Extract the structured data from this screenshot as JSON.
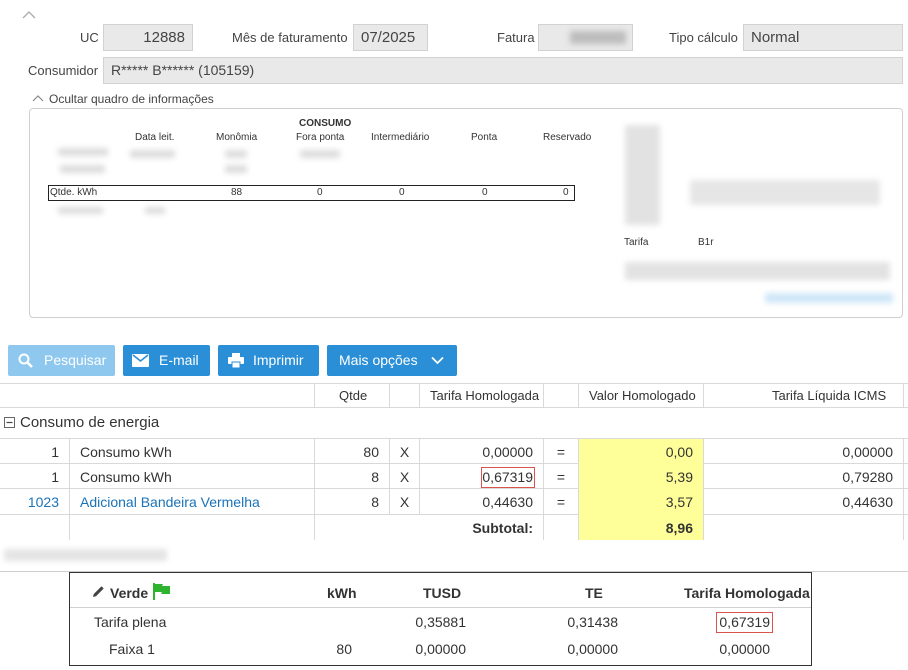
{
  "header": {
    "uc_label": "UC",
    "uc_value": "12888",
    "mes_label": "Mês de faturamento",
    "mes_value": "07/2025",
    "fatura_label": "Fatura",
    "tipo_label": "Tipo cálculo",
    "tipo_value": "Normal",
    "consumidor_label": "Consumidor",
    "consumidor_value": "R***** B****** (105159)"
  },
  "info_panel": {
    "toggle_label": "Ocultar quadro de informações",
    "consumo_heading": "CONSUMO",
    "columns": [
      "Data leit.",
      "Monômia",
      "Fora ponta",
      "Intermediário",
      "Ponta",
      "Reservado"
    ],
    "qtde_row": {
      "label": "Qtde. kWh",
      "values": [
        "88",
        "0",
        "0",
        "0",
        "0"
      ]
    },
    "tarifa_label": "Tarifa",
    "tarifa_value": "B1r"
  },
  "toolbar": {
    "pesquisar": "Pesquisar",
    "email": "E-mail",
    "imprimir": "Imprimir",
    "mais": "Mais opções"
  },
  "table": {
    "headers": {
      "qtde": "Qtde",
      "tarifa": "Tarifa Homologada",
      "valor": "Valor Homologado",
      "liquida": "Tarifa Líquida ICMS"
    },
    "group_title": "Consumo de energia",
    "rows": [
      {
        "code": "1",
        "desc": "Consumo kWh",
        "qtde": "80",
        "x": "X",
        "tarifa": "0,00000",
        "eq": "=",
        "valor": "0,00",
        "liquida": "0,00000"
      },
      {
        "code": "1",
        "desc": "Consumo kWh",
        "qtde": "8",
        "x": "X",
        "tarifa": "0,67319",
        "eq": "=",
        "valor": "5,39",
        "liquida": "0,79280"
      },
      {
        "code": "1023",
        "desc": "Adicional Bandeira Vermelha",
        "qtde": "8",
        "x": "X",
        "tarifa": "0,44630",
        "eq": "=",
        "valor": "3,57",
        "liquida": "0,44630"
      }
    ],
    "subtotal_label": "Subtotal:",
    "subtotal_value": "8,96"
  },
  "bandeira": {
    "title": "Verde",
    "headers": {
      "kwh": "kWh",
      "tusd": "TUSD",
      "te": "TE",
      "tarifa": "Tarifa Homologada"
    },
    "rows": [
      {
        "label": "Tarifa plena",
        "kwh": "",
        "tusd": "0,35881",
        "te": "0,31438",
        "tarifa": "0,67319"
      },
      {
        "label": "Faixa 1",
        "kwh": "80",
        "tusd": "0,00000",
        "te": "0,00000",
        "tarifa": "0,00000"
      }
    ]
  },
  "colors": {
    "primary": "#2a8fd6",
    "disabled": "#8ec8ef",
    "highlight": "#ffff99",
    "flag": "#2db32d"
  }
}
